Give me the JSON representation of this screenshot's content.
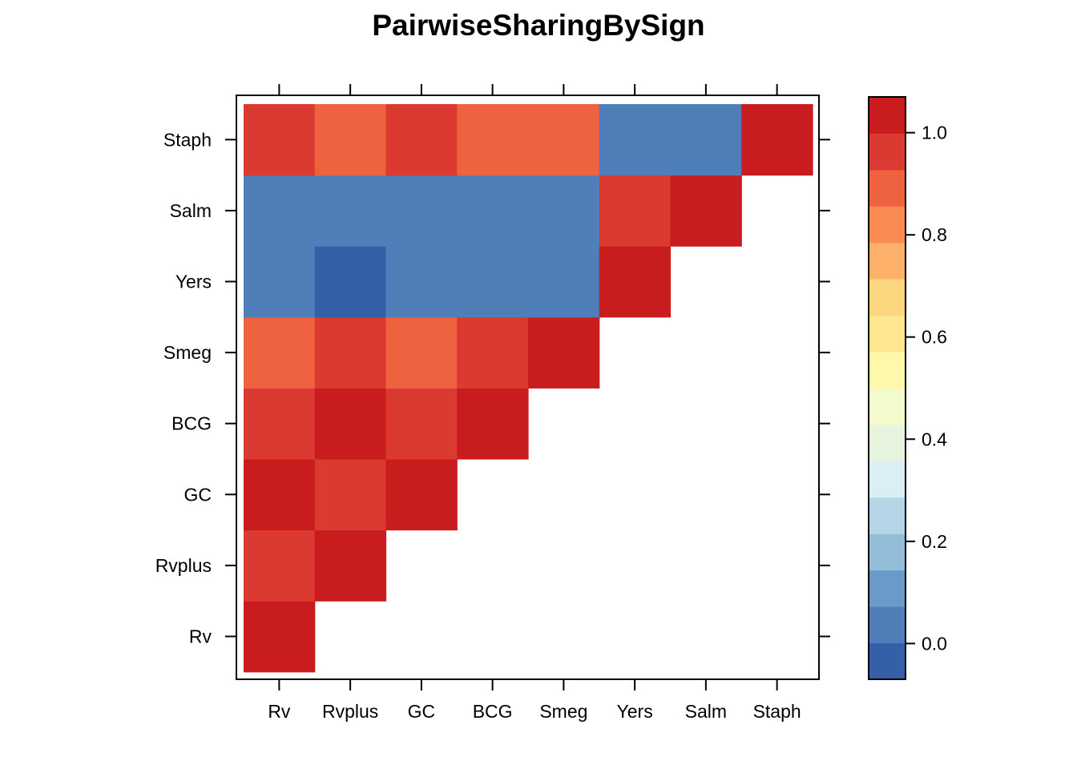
{
  "chart_data": {
    "type": "heatmap",
    "title": "PairwiseSharingBySign",
    "xlabel": "",
    "ylabel": "",
    "x_categories": [
      "Rv",
      "Rvplus",
      "GC",
      "BCG",
      "Smeg",
      "Yers",
      "Salm",
      "Staph"
    ],
    "y_categories": [
      "Rv",
      "Rvplus",
      "GC",
      "BCG",
      "Smeg",
      "Yers",
      "Salm",
      "Staph"
    ],
    "values": [
      [
        1.0,
        null,
        null,
        null,
        null,
        null,
        null,
        null
      ],
      [
        0.95,
        1.0,
        null,
        null,
        null,
        null,
        null,
        null
      ],
      [
        1.0,
        0.95,
        1.0,
        null,
        null,
        null,
        null,
        null
      ],
      [
        0.95,
        1.0,
        0.95,
        1.0,
        null,
        null,
        null,
        null
      ],
      [
        0.88,
        0.95,
        0.9,
        0.95,
        1.0,
        null,
        null,
        null
      ],
      [
        0.05,
        -0.02,
        0.05,
        0.05,
        0.05,
        1.0,
        null,
        null
      ],
      [
        0.05,
        0.05,
        0.05,
        0.05,
        0.05,
        0.95,
        1.0,
        null
      ],
      [
        0.95,
        0.88,
        0.95,
        0.9,
        0.9,
        0.05,
        0.05,
        1.0
      ]
    ],
    "color_scale": {
      "range": [
        -0.07,
        1.07
      ],
      "ticks": [
        "0.0",
        "0.2",
        "0.4",
        "0.6",
        "0.8",
        "1.0"
      ],
      "colors": [
        "#3560A8",
        "#4F7EB9",
        "#6A9AC7",
        "#94BDD9",
        "#B6D6E7",
        "#D9EFF5",
        "#E6F3DD",
        "#F3FACB",
        "#FEF9AA",
        "#FEE692",
        "#FDD77F",
        "#FDB069",
        "#FA8B54",
        "#EE6240",
        "#DA3A2F",
        "#C91C1F"
      ]
    },
    "legend_placement": "right",
    "grid": false
  }
}
